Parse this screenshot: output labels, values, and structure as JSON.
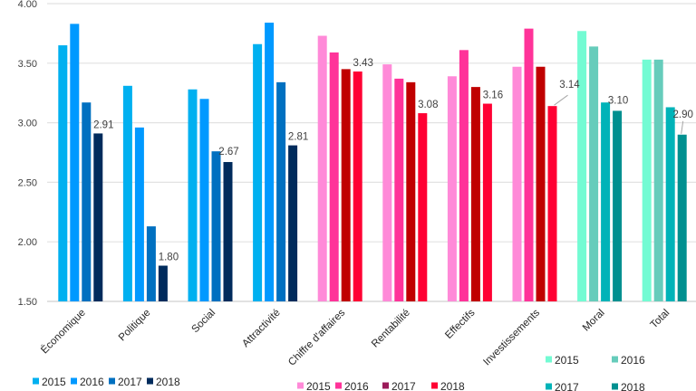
{
  "chart_data": {
    "type": "bar",
    "title": "",
    "xlabel": "",
    "ylabel": "",
    "ylim": [
      1.5,
      4.0
    ],
    "yticks": [
      "1.50",
      "2.00",
      "2.50",
      "3.00",
      "3.50",
      "4.00"
    ],
    "grid": true,
    "categories": [
      "Économique",
      "Politique",
      "Social",
      "Attractivité",
      "Chiffre d'affaires",
      "Rentabilité",
      "Effectifs",
      "Investissements",
      "Moral",
      "Total"
    ],
    "years": [
      "2015",
      "2016",
      "2017",
      "2018"
    ],
    "category_palette": [
      "blue",
      "blue",
      "blue",
      "blue",
      "red",
      "red",
      "red",
      "red",
      "teal",
      "teal"
    ],
    "palettes": {
      "blue": [
        "#00B0F0",
        "#0099FF",
        "#0070C0",
        "#002B5C"
      ],
      "red": [
        "#FF8AD8",
        "#FF3399",
        "#C00000",
        "#FF0033"
      ],
      "teal": [
        "#73FBD3",
        "#66CCBB",
        "#00B3B8",
        "#009090"
      ]
    },
    "series": [
      {
        "name": "2015",
        "values": [
          3.65,
          3.31,
          3.28,
          3.66,
          3.73,
          3.49,
          3.39,
          3.47,
          3.77,
          3.53
        ]
      },
      {
        "name": "2016",
        "values": [
          3.83,
          2.96,
          3.2,
          3.84,
          3.59,
          3.37,
          3.61,
          3.79,
          3.64,
          3.53
        ]
      },
      {
        "name": "2017",
        "values": [
          3.17,
          2.13,
          2.76,
          3.34,
          3.45,
          3.34,
          3.3,
          3.47,
          3.17,
          3.13
        ]
      },
      {
        "name": "2018",
        "values": [
          2.91,
          1.8,
          2.67,
          2.81,
          3.43,
          3.08,
          3.16,
          3.14,
          3.1,
          2.9
        ]
      }
    ],
    "data_labels_2018": [
      "2.91",
      "1.80",
      "2.67",
      "2.81",
      "3.43",
      "3.08",
      "3.16",
      "3.14",
      "3.10",
      "2.90"
    ],
    "legends": [
      {
        "palette": "blue",
        "placement": "bottom-left",
        "entries": [
          "2015",
          "2016",
          "2017",
          "2018"
        ]
      },
      {
        "palette": "red",
        "placement": "bottom-center",
        "entries": [
          "2015",
          "2016",
          "2017",
          "2018"
        ],
        "colors": [
          "#FF8AD8",
          "#FF3399",
          "#9B1B5A",
          "#FF0033"
        ]
      },
      {
        "palette": "teal",
        "placement": "bottom-right",
        "entries": [
          "2015",
          "2016",
          "2017",
          "2018"
        ]
      }
    ]
  }
}
